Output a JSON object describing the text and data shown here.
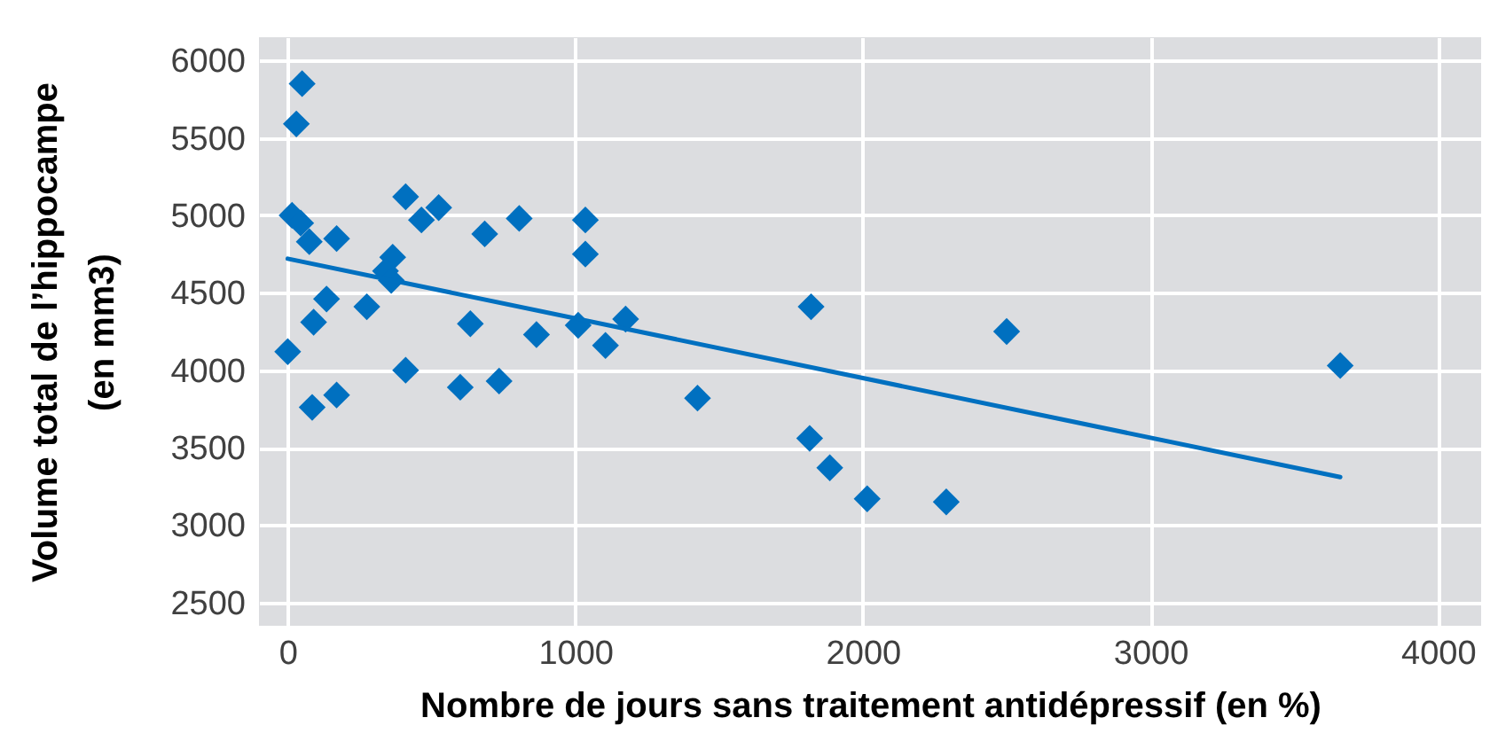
{
  "chart_data": {
    "type": "scatter",
    "xlabel": "Nombre de jours sans traitement antidépressif (en %)",
    "ylabel": "Volume total de l’hippocampe\n(en mm3)",
    "xlim": [
      -100,
      4150
    ],
    "ylim": [
      2350,
      6150
    ],
    "xticks": [
      0,
      1000,
      2000,
      3000,
      4000
    ],
    "yticks": [
      2500,
      3000,
      3500,
      4000,
      4500,
      5000,
      5500,
      6000
    ],
    "grid": true,
    "series": [
      {
        "marker": "diamond",
        "color": "#0070c0",
        "x": [
          50,
          30,
          15,
          45,
          75,
          170,
          410,
          465,
          525,
          685,
          805,
          1035,
          1035,
          365,
          340,
          360,
          135,
          90,
          275,
          0,
          635,
          865,
          1010,
          1105,
          1175,
          410,
          600,
          735,
          85,
          170,
          1425,
          1820,
          1815,
          1885,
          2015,
          2290,
          2500,
          3660
        ],
        "values": [
          5850,
          5590,
          5000,
          4950,
          4830,
          4850,
          5120,
          4970,
          5050,
          4880,
          4980,
          4970,
          4750,
          4730,
          4640,
          4580,
          4460,
          4310,
          4410,
          4120,
          4300,
          4230,
          4290,
          4160,
          4330,
          4000,
          3890,
          3930,
          3760,
          3840,
          3820,
          4410,
          3560,
          3370,
          3170,
          3150,
          4250,
          4030
        ]
      },
      {
        "type": "line",
        "color": "#0070c0",
        "x": [
          0,
          3660
        ],
        "values": [
          4720,
          3310
        ]
      }
    ]
  }
}
